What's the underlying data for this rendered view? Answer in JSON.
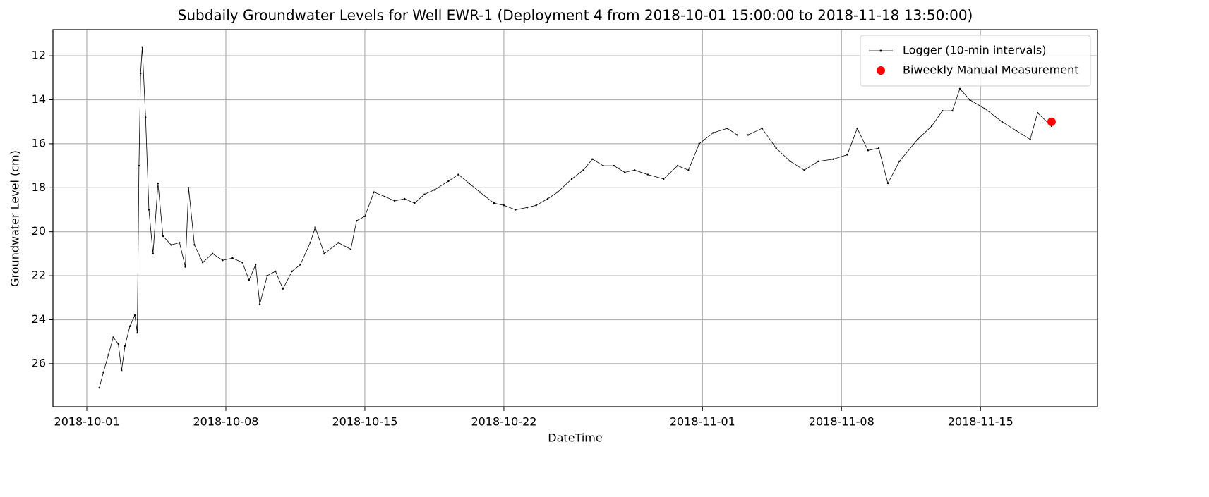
{
  "chart_data": {
    "type": "line",
    "title": "Subdaily Groundwater Levels for Well EWR-1 (Deployment 4 from 2018-10-01 15:00:00 to 2018-11-18 13:50:00)",
    "xlabel": "DateTime",
    "ylabel": "Groundwater Level (cm)",
    "xlim": [
      "2018-09-29 07:03",
      "2018-11-20 21:21"
    ],
    "xticks": [
      "2018-10-01",
      "2018-10-08",
      "2018-10-15",
      "2018-10-22",
      "2018-11-01",
      "2018-11-08",
      "2018-11-15"
    ],
    "ylim": [
      27.96,
      10.81
    ],
    "yticks": [
      12,
      14,
      16,
      18,
      20,
      22,
      24,
      26
    ],
    "grid": true,
    "legend": "upper right",
    "series": [
      {
        "name": "Logger (10-min intervals)",
        "color": "#000000",
        "style": "line",
        "x": [
          "2018-10-01 15:00",
          "2018-10-01 20:00",
          "2018-10-02 02:00",
          "2018-10-02 08:00",
          "2018-10-02 14:00",
          "2018-10-02 18:00",
          "2018-10-02 22:00",
          "2018-10-03 04:00",
          "2018-10-03 10:00",
          "2018-10-03 13:00",
          "2018-10-03 15:00",
          "2018-10-03 17:00",
          "2018-10-03 19:00",
          "2018-10-03 23:00",
          "2018-10-04 03:00",
          "2018-10-04 08:00",
          "2018-10-04 14:00",
          "2018-10-04 20:00",
          "2018-10-05 06:00",
          "2018-10-05 16:00",
          "2018-10-05 23:00",
          "2018-10-06 03:00",
          "2018-10-06 10:00",
          "2018-10-06 20:00",
          "2018-10-07 08:00",
          "2018-10-07 20:00",
          "2018-10-08 08:00",
          "2018-10-08 20:00",
          "2018-10-09 04:00",
          "2018-10-09 12:00",
          "2018-10-09 17:00",
          "2018-10-10 02:00",
          "2018-10-10 12:00",
          "2018-10-10 21:00",
          "2018-10-11 08:00",
          "2018-10-11 18:00",
          "2018-10-12 06:00",
          "2018-10-12 12:00",
          "2018-10-12 23:00",
          "2018-10-13 16:00",
          "2018-10-14 07:00",
          "2018-10-14 14:00",
          "2018-10-15 00:00",
          "2018-10-15 11:00",
          "2018-10-16 00:00",
          "2018-10-16 12:00",
          "2018-10-17 00:00",
          "2018-10-17 12:00",
          "2018-10-18 00:00",
          "2018-10-18 12:00",
          "2018-10-19 05:00",
          "2018-10-19 17:00",
          "2018-10-20 06:00",
          "2018-10-20 19:00",
          "2018-10-21 12:00",
          "2018-10-22 00:00",
          "2018-10-22 14:00",
          "2018-10-23 04:00",
          "2018-10-23 15:00",
          "2018-10-24 05:00",
          "2018-10-24 17:00",
          "2018-10-25 10:00",
          "2018-10-26 00:00",
          "2018-10-26 11:00",
          "2018-10-27 00:00",
          "2018-10-27 13:00",
          "2018-10-28 02:00",
          "2018-10-28 14:00",
          "2018-10-29 06:00",
          "2018-10-30 01:00",
          "2018-10-30 18:00",
          "2018-10-31 07:00",
          "2018-10-31 20:00",
          "2018-11-01 13:00",
          "2018-11-02 06:00",
          "2018-11-02 18:00",
          "2018-11-03 07:00",
          "2018-11-04 00:00",
          "2018-11-04 17:00",
          "2018-11-05 10:00",
          "2018-11-06 03:00",
          "2018-11-06 20:00",
          "2018-11-07 14:00",
          "2018-11-08 07:00",
          "2018-11-08 19:00",
          "2018-11-09 08:00",
          "2018-11-09 21:00",
          "2018-11-10 08:00",
          "2018-11-10 22:00",
          "2018-11-11 20:00",
          "2018-11-12 13:00",
          "2018-11-13 02:00",
          "2018-11-13 14:00",
          "2018-11-13 23:00",
          "2018-11-14 11:00",
          "2018-11-15 05:00",
          "2018-11-16 02:00",
          "2018-11-16 19:00",
          "2018-11-17 12:00",
          "2018-11-17 21:00",
          "2018-11-18 13:50"
        ],
        "values": [
          27.1,
          26.4,
          25.6,
          24.8,
          25.1,
          26.3,
          25.2,
          24.3,
          23.8,
          24.6,
          17.0,
          12.8,
          11.6,
          14.8,
          19.0,
          21.0,
          17.8,
          20.2,
          20.6,
          20.5,
          21.6,
          18.0,
          20.6,
          21.4,
          21.0,
          21.3,
          21.2,
          21.4,
          22.2,
          21.5,
          23.3,
          22.0,
          21.8,
          22.6,
          21.8,
          21.5,
          20.5,
          19.8,
          21.0,
          20.5,
          20.8,
          19.5,
          19.3,
          18.2,
          18.4,
          18.6,
          18.5,
          18.7,
          18.3,
          18.1,
          17.7,
          17.4,
          17.8,
          18.2,
          18.7,
          18.8,
          19.0,
          18.9,
          18.8,
          18.5,
          18.2,
          17.6,
          17.2,
          16.7,
          17.0,
          17.0,
          17.3,
          17.2,
          17.4,
          17.6,
          17.0,
          17.2,
          16.0,
          15.5,
          15.3,
          15.6,
          15.6,
          15.3,
          16.2,
          16.8,
          17.2,
          16.8,
          16.7,
          16.5,
          15.3,
          16.3,
          16.2,
          17.8,
          16.8,
          15.8,
          15.2,
          14.5,
          14.5,
          13.5,
          14.0,
          14.4,
          15.0,
          15.4,
          15.8,
          14.6,
          15.2
        ]
      },
      {
        "name": "Biweekly Manual Measurement",
        "color": "#ff0000",
        "style": "scatter",
        "x": [
          "2018-11-18 13:50"
        ],
        "values": [
          15.0
        ]
      }
    ]
  }
}
